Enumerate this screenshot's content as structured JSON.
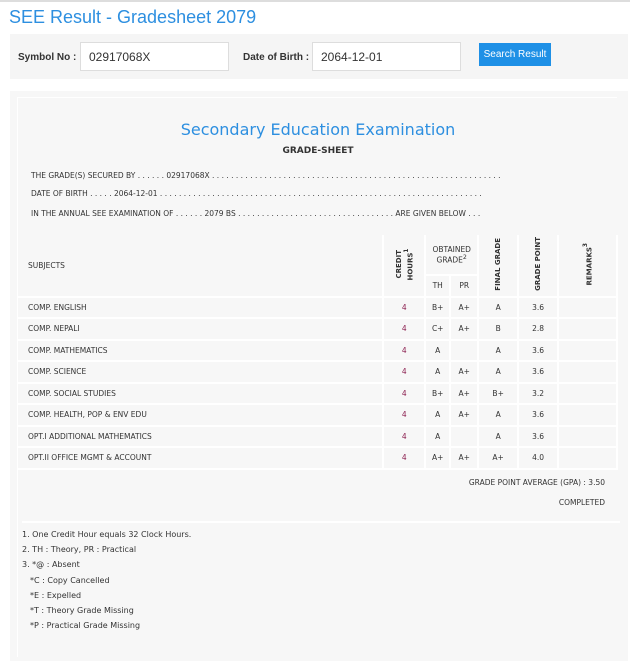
{
  "page": {
    "title": "SEE Result - Gradesheet 2079"
  },
  "search": {
    "symbol_label": "Symbol No :",
    "symbol_value": "02917068X",
    "dob_label": "Date of Birth :",
    "dob_value": "2064-12-01",
    "button": "Search Result"
  },
  "sheet": {
    "heading": "Secondary Education Examination",
    "subheading": "GRADE-SHEET",
    "line1": "THE GRADE(S) SECURED BY . . . . . . 02917068X . . . . . . . . . . . . . . . . . . . . . . . . . . . . . . . . . . . . . . . . . . . . . . . . . . . . . . . . . . . . .",
    "line2": "DATE OF BIRTH . . . . . 2064-12-01 . . . . . . . . . . . . . . . . . . . . . . . . . . . . . . . . . . . . . . . . . . . . . . . . . . . . . . . . . . . . . . . . . . . .",
    "line3": "IN THE ANNUAL SEE EXAMINATION OF . . . . . . 2079 BS . . . . . . . . . . . . . . . . . . . . . . . . . . . . . . . . . ARE GIVEN BELOW . . ."
  },
  "table": {
    "headers": {
      "subjects": "SUBJECTS",
      "credit": "CREDIT HOURS",
      "credit_sup": "1",
      "obtained": "OBTAINED GRADE",
      "obtained_sup": "2",
      "th": "TH",
      "pr": "PR",
      "final": "FINAL GRADE",
      "gp": "GRADE POINT",
      "remarks": "REMARKS",
      "remarks_sup": "3"
    },
    "rows": [
      {
        "subject": "COMP. ENGLISH",
        "credit": "4",
        "th": "B+",
        "pr": "A+",
        "final": "A",
        "gp": "3.6"
      },
      {
        "subject": "COMP. NEPALI",
        "credit": "4",
        "th": "C+",
        "pr": "A+",
        "final": "B",
        "gp": "2.8"
      },
      {
        "subject": "COMP. MATHEMATICS",
        "credit": "4",
        "th": "A",
        "pr": "",
        "final": "A",
        "gp": "3.6"
      },
      {
        "subject": "COMP. SCIENCE",
        "credit": "4",
        "th": "A",
        "pr": "A+",
        "final": "A",
        "gp": "3.6"
      },
      {
        "subject": "COMP. SOCIAL STUDIES",
        "credit": "4",
        "th": "B+",
        "pr": "A+",
        "final": "B+",
        "gp": "3.2"
      },
      {
        "subject": "COMP. HEALTH, POP & ENV EDU",
        "credit": "4",
        "th": "A",
        "pr": "A+",
        "final": "A",
        "gp": "3.6"
      },
      {
        "subject": "OPT.I ADDITIONAL MATHEMATICS",
        "credit": "4",
        "th": "A",
        "pr": "",
        "final": "A",
        "gp": "3.6"
      },
      {
        "subject": "OPT.II OFFICE MGMT & ACCOUNT",
        "credit": "4",
        "th": "A+",
        "pr": "A+",
        "final": "A+",
        "gp": "4.0"
      }
    ]
  },
  "gpa": "GRADE POINT AVERAGE (GPA) : 3.50",
  "status": "COMPLETED",
  "notes": [
    "1. One Credit Hour equals 32 Clock Hours.",
    "2. TH : Theory, PR : Practical",
    "3. *@ : Absent",
    "   *C : Copy Cancelled",
    "   *E : Expelled",
    "   *T : Theory Grade Missing",
    "   *P : Practical Grade Missing"
  ]
}
